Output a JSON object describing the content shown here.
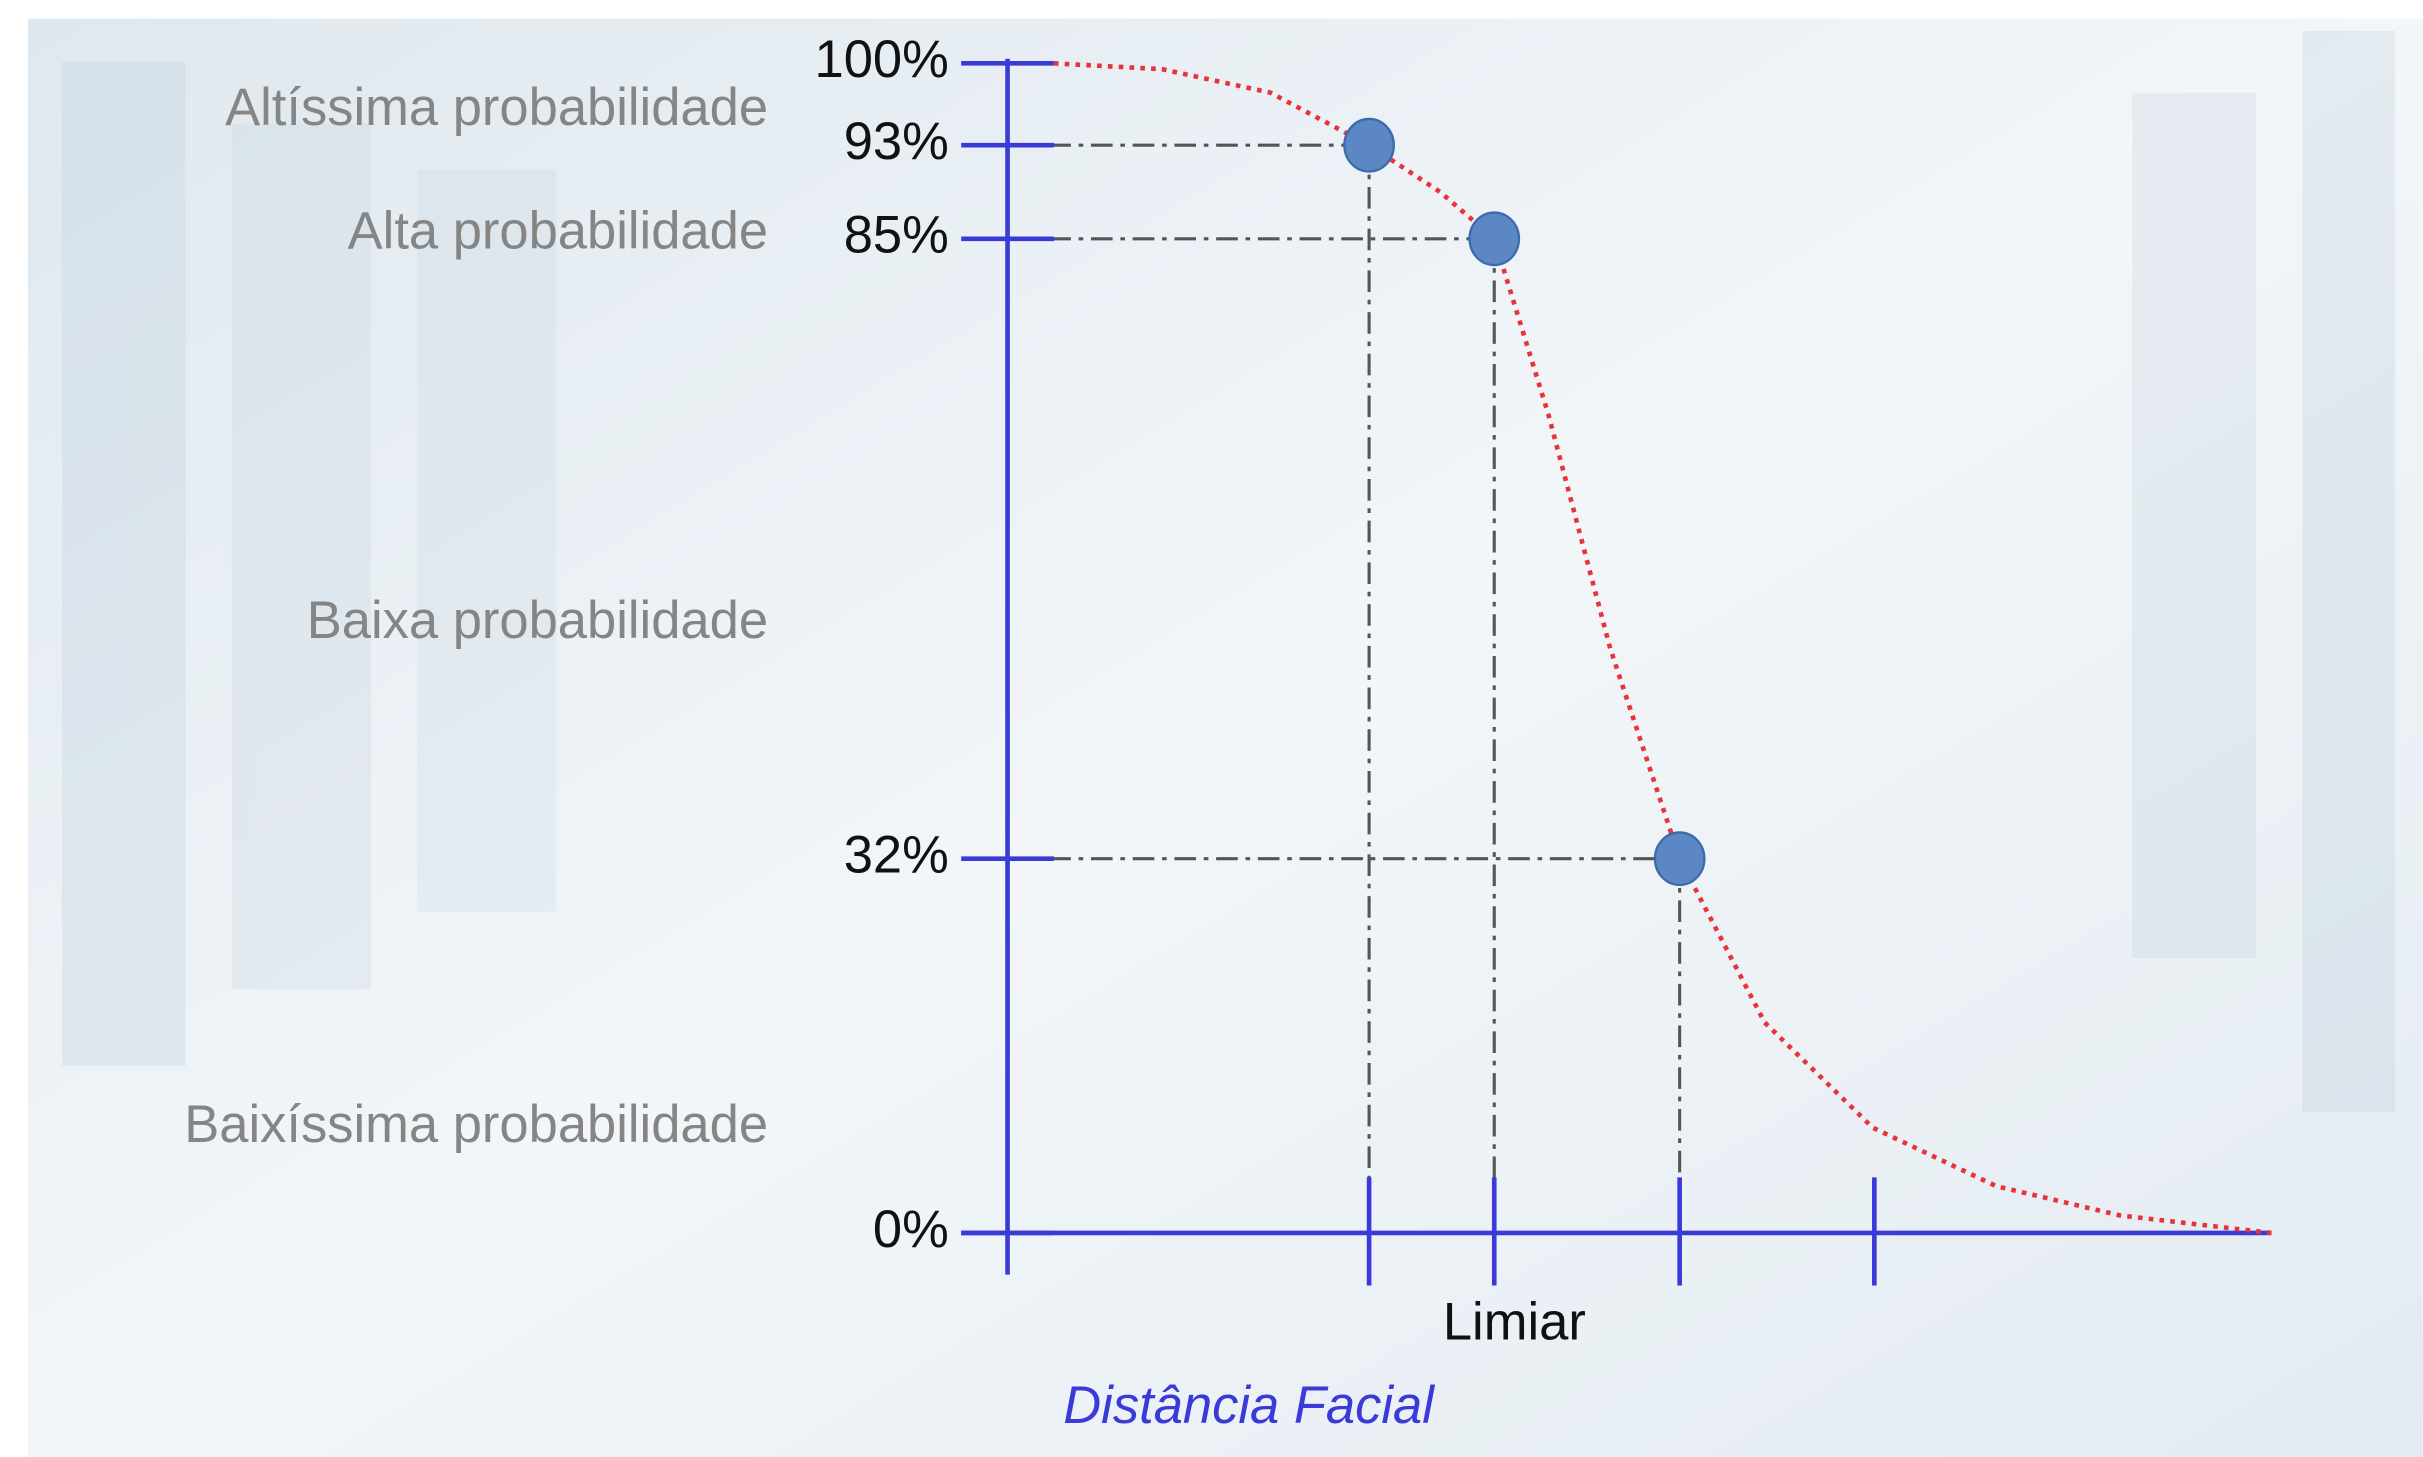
{
  "chart_data": {
    "type": "line",
    "x_axis_label": "Distância Facial",
    "xlim": [
      0,
      8.18
    ],
    "xticks": [
      2.34,
      3.15,
      4.35,
      5.61
    ],
    "ylim": [
      0,
      100
    ],
    "yticks": [
      {
        "value": 0,
        "label": "0%"
      },
      {
        "value": 32,
        "label": "32%"
      },
      {
        "value": 85,
        "label": "85%"
      },
      {
        "value": 93,
        "label": "93%"
      },
      {
        "value": 100,
        "label": "100%"
      }
    ],
    "threshold": {
      "x": 3.15,
      "label": "Limiar"
    },
    "zones": [
      "Altíssima probabilidade",
      "Alta probabilidade",
      "Baixa probabilidade",
      "Baixíssima probabilidade"
    ],
    "curve": {
      "color": "#e8333a",
      "x": [
        0.3,
        1.0,
        1.7,
        2.34,
        2.8,
        3.15,
        3.5,
        3.9,
        4.35,
        4.9,
        5.6,
        6.4,
        7.2,
        8.18
      ],
      "values": [
        100,
        99.5,
        97.5,
        93,
        89,
        85,
        70,
        50,
        32,
        18,
        9,
        4,
        1.5,
        0
      ]
    },
    "points": {
      "color": "#5b87c5",
      "x": [
        2.34,
        3.15,
        4.35
      ],
      "values": [
        93,
        85,
        32
      ]
    },
    "axis_color": "#3a3ad8"
  }
}
